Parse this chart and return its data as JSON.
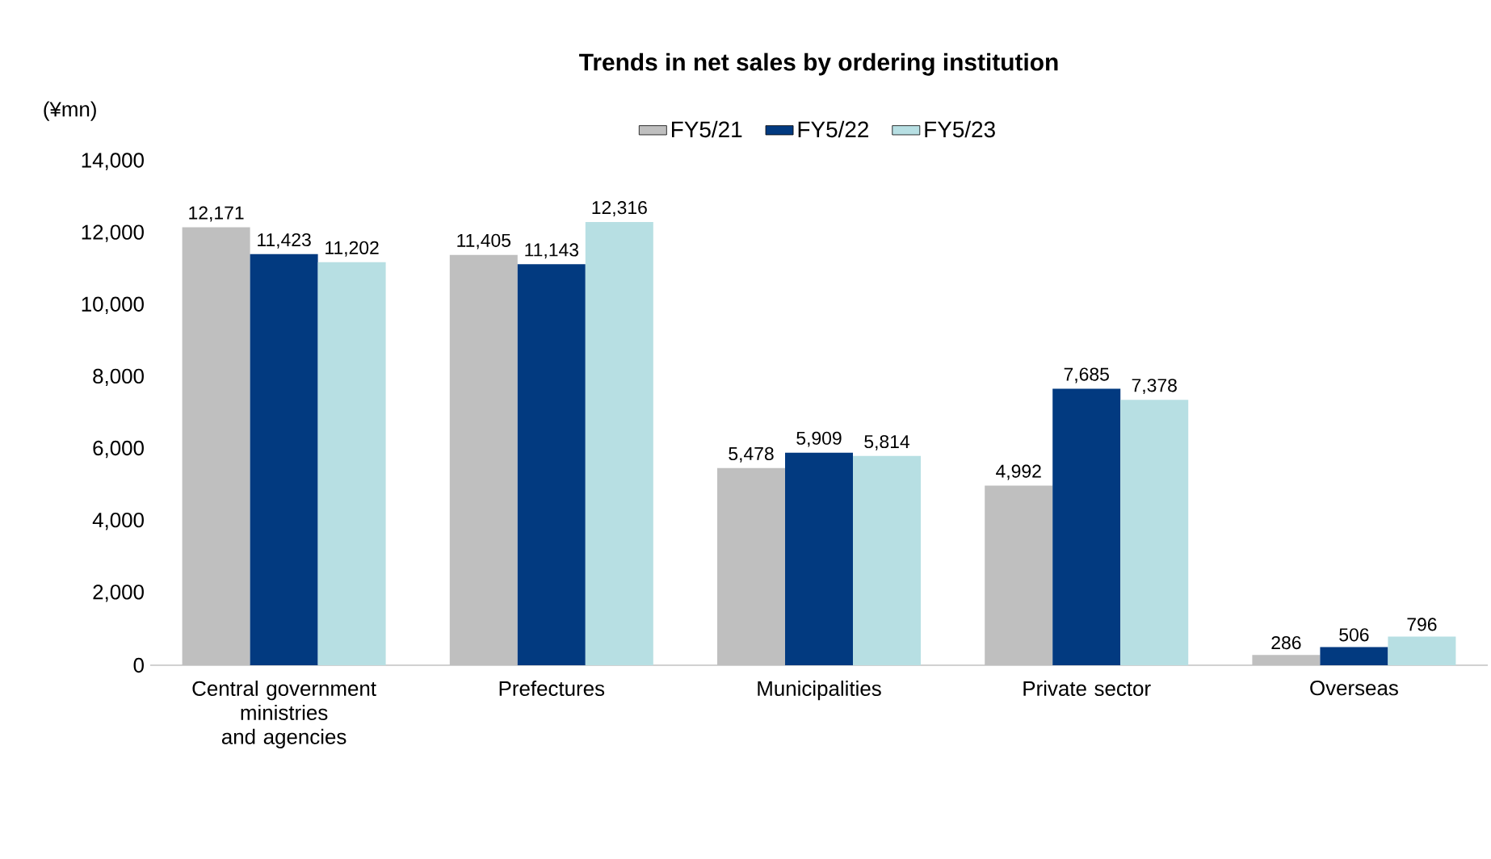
{
  "chart_data": {
    "type": "bar",
    "title": "Trends in net sales by ordering institution",
    "ylabel": "(¥mn)",
    "categories": [
      "Central government ministries and agencies",
      "Prefectures",
      "Municipalities",
      "Private sector",
      "Overseas"
    ],
    "series": [
      {
        "name": "FY5/21",
        "color": "#bfbfbf",
        "values": [
          12171,
          11405,
          5478,
          4992,
          286
        ],
        "value_labels": [
          "12,171",
          "11,405",
          "5,478",
          "4,992",
          "286"
        ]
      },
      {
        "name": "FY5/22",
        "color": "#023a80",
        "values": [
          11423,
          11143,
          5909,
          7685,
          506
        ],
        "value_labels": [
          "11,423",
          "11,143",
          "5,909",
          "7,685",
          "506"
        ]
      },
      {
        "name": "FY5/23",
        "color": "#b7dfe3",
        "values": [
          11202,
          12316,
          5814,
          7378,
          796
        ],
        "value_labels": [
          "11,202",
          "12,316",
          "5,814",
          "7,378",
          "796"
        ]
      }
    ],
    "ylim": [
      0,
      14000
    ],
    "yticks": [
      {
        "value": 0,
        "label": "0"
      },
      {
        "value": 2000,
        "label": "2,000"
      },
      {
        "value": 4000,
        "label": "4,000"
      },
      {
        "value": 6000,
        "label": "6,000"
      },
      {
        "value": 8000,
        "label": "8,000"
      },
      {
        "value": 10000,
        "label": "10,000"
      },
      {
        "value": 12000,
        "label": "12,000"
      },
      {
        "value": 14000,
        "label": "14,000"
      }
    ],
    "grid": false,
    "legend": "top"
  }
}
